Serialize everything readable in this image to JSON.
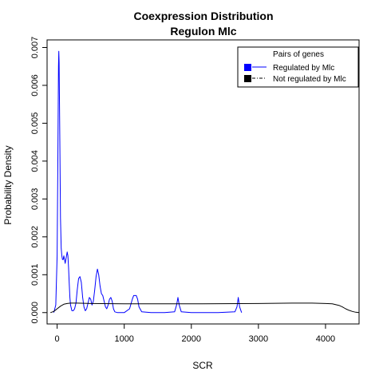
{
  "chart_data": {
    "type": "line",
    "title": "Coexpression Distribution",
    "subtitle": "Regulon Mlc",
    "xlabel": "SCR",
    "ylabel": "Probability Density",
    "xlim": [
      -150,
      4500
    ],
    "ylim": [
      -0.0003,
      0.0072
    ],
    "x_ticks": [
      0,
      1000,
      2000,
      3000,
      4000
    ],
    "x_tick_labels": [
      "0",
      "1000",
      "2000",
      "3000",
      "4000"
    ],
    "y_ticks": [
      0,
      0.001,
      0.002,
      0.003,
      0.004,
      0.005,
      0.006,
      0.007
    ],
    "y_tick_labels": [
      "0.000",
      "0.001",
      "0.002",
      "0.003",
      "0.004",
      "0.005",
      "0.006",
      "0.007"
    ],
    "grid": false,
    "legend": {
      "title": "Pairs of genes",
      "position": "top-right",
      "entries": [
        "Regulated by  Mlc",
        "Not regulated by  Mlc"
      ]
    },
    "series": [
      {
        "name": "Regulated by  Mlc",
        "color": "#0000ff",
        "x": [
          -50,
          -20,
          0,
          10,
          20,
          25,
          30,
          40,
          50,
          60,
          70,
          80,
          90,
          100,
          110,
          120,
          130,
          140,
          150,
          160,
          170,
          180,
          190,
          200,
          220,
          240,
          260,
          280,
          300,
          320,
          340,
          360,
          380,
          400,
          420,
          440,
          460,
          480,
          500,
          520,
          540,
          560,
          580,
          600,
          620,
          640,
          660,
          680,
          700,
          720,
          740,
          760,
          780,
          800,
          820,
          840,
          860,
          900,
          1000,
          1080,
          1120,
          1140,
          1160,
          1180,
          1200,
          1220,
          1260,
          1400,
          1600,
          1750,
          1780,
          1800,
          1820,
          1850,
          2000,
          2400,
          2650,
          2680,
          2700,
          2720,
          2750
        ],
        "y": [
          0,
          0.0002,
          0.0015,
          0.004,
          0.0065,
          0.0069,
          0.0066,
          0.0045,
          0.0025,
          0.0017,
          0.0015,
          0.0014,
          0.0014,
          0.0015,
          0.0014,
          0.0013,
          0.0014,
          0.0015,
          0.0016,
          0.0015,
          0.0012,
          0.0008,
          0.0004,
          0.0002,
          5e-05,
          5e-05,
          0.0001,
          0.00025,
          0.0006,
          0.0009,
          0.00095,
          0.0008,
          0.0004,
          0.00015,
          5e-05,
          0.0001,
          0.00025,
          0.0004,
          0.00035,
          0.0002,
          0.0003,
          0.0006,
          0.00095,
          0.00115,
          0.001,
          0.0007,
          0.0005,
          0.00045,
          0.0003,
          0.00015,
          0.0001,
          0.0002,
          0.00035,
          0.0004,
          0.0003,
          0.0001,
          2e-05,
          0,
          0,
          0.0001,
          0.00035,
          0.00045,
          0.00045,
          0.00045,
          0.00035,
          0.00015,
          2e-05,
          0,
          0,
          2e-05,
          0.0002,
          0.0004,
          0.0002,
          2e-05,
          0,
          0,
          2e-05,
          0.00015,
          0.0004,
          0.00015,
          0
        ]
      },
      {
        "name": "Not regulated by  Mlc",
        "color": "#000000",
        "x": [
          -100,
          -50,
          0,
          50,
          100,
          150,
          200,
          300,
          500,
          1000,
          2000,
          3000,
          3500,
          3800,
          4000,
          4100,
          4200,
          4250,
          4300,
          4350,
          4400,
          4450,
          4500
        ],
        "y": [
          0,
          3e-05,
          0.0001,
          0.00017,
          0.00022,
          0.00024,
          0.00025,
          0.00025,
          0.00024,
          0.00023,
          0.00023,
          0.00024,
          0.00025,
          0.00025,
          0.00024,
          0.00023,
          0.00019,
          0.00015,
          0.0001,
          6e-05,
          3e-05,
          1e-05,
          0
        ]
      }
    ]
  }
}
